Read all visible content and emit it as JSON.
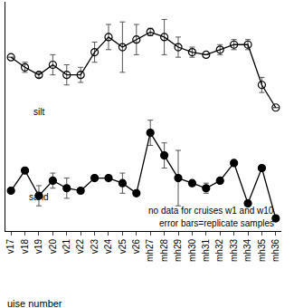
{
  "chart_data": {
    "type": "line",
    "x_label": "uise number",
    "categories": [
      "v17",
      "v18",
      "v19",
      "v20",
      "v21",
      "v22",
      "v23",
      "v24",
      "v25",
      "v26",
      "mh27",
      "mh28",
      "mh29",
      "mh30",
      "mh31",
      "mh32",
      "mh33",
      "mh34",
      "mh35",
      "mh36"
    ],
    "series": [
      {
        "name": "silt",
        "color": "#000000",
        "marker": "circle-open",
        "line_style": "solid",
        "values": [
          78,
          74,
          71,
          75,
          71,
          71,
          80,
          86,
          82,
          85,
          88,
          86,
          82,
          80,
          79,
          81,
          83,
          83,
          67,
          58
        ],
        "error": [
          0,
          2,
          1,
          4,
          4,
          3,
          4,
          5,
          10,
          6,
          1.5,
          7,
          4,
          2,
          0,
          2,
          2,
          2,
          3,
          0
        ]
      },
      {
        "name": "sand",
        "color": "#000000",
        "marker": "circle",
        "line_style": "solid",
        "values": [
          25,
          33,
          23,
          29,
          26,
          25,
          30,
          30,
          28,
          24,
          48,
          39,
          30,
          28,
          26,
          29,
          36,
          20,
          34,
          14
        ],
        "error": [
          0,
          0,
          4,
          3,
          4,
          0,
          0,
          0,
          4,
          0,
          5,
          5,
          11,
          0,
          2,
          0,
          0,
          0,
          0,
          0
        ]
      }
    ],
    "annotations": [
      "no data for cruises w1 and w10",
      "error bars=replicate samples"
    ],
    "ylim": [
      9,
      100
    ],
    "yticks": [],
    "tick_labels": "x",
    "grid": false
  }
}
